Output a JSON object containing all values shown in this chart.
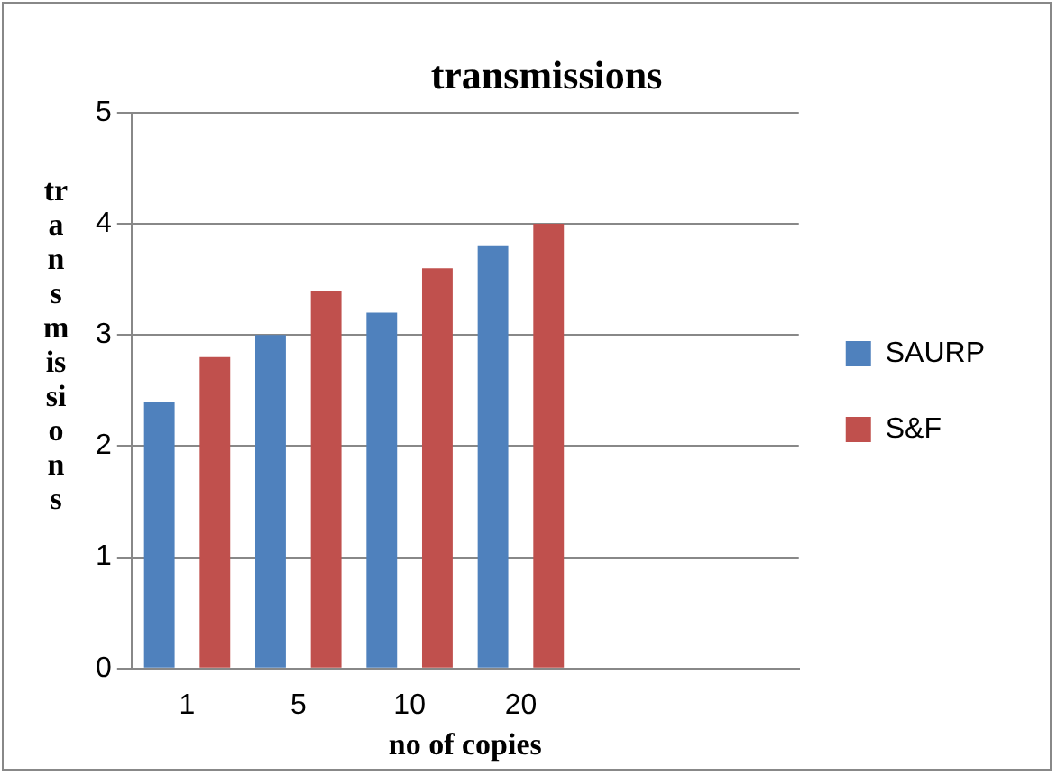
{
  "chart_data": {
    "type": "bar",
    "title": "transmissions",
    "xlabel": "no of copies",
    "ylabel": "transmissions",
    "categories": [
      "1",
      "5",
      "10",
      "20",
      null,
      null
    ],
    "series": [
      {
        "name": "SAURP",
        "color": "#4f81bd",
        "values": [
          2.4,
          3.0,
          3.2,
          3.8,
          null,
          null
        ]
      },
      {
        "name": "S&F",
        "color": "#c0504d",
        "values": [
          2.8,
          3.4,
          3.6,
          4.0,
          null,
          null
        ]
      }
    ],
    "ylim": [
      0,
      5
    ],
    "yticks": [
      0,
      1,
      2,
      3,
      4,
      5
    ],
    "grid": "y",
    "legend": "right"
  }
}
